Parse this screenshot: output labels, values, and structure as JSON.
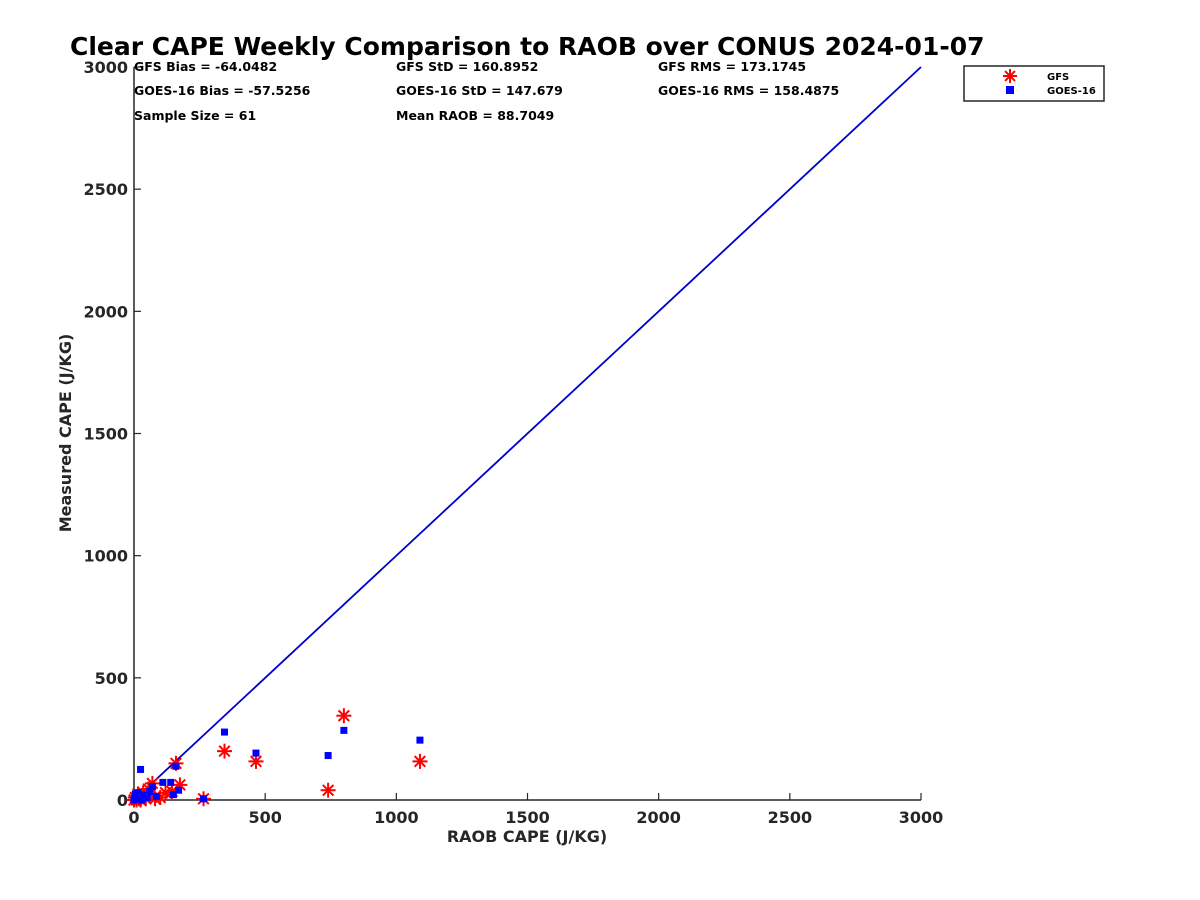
{
  "chart_data": {
    "type": "scatter",
    "title": "Clear CAPE Weekly Comparison to RAOB over CONUS 2024-01-07",
    "xlabel": "RAOB CAPE (J/KG)",
    "ylabel": "Measured CAPE (J/KG)",
    "xlim": [
      0,
      3000
    ],
    "ylim": [
      0,
      3000
    ],
    "xticks": [
      "0",
      "500",
      "1000",
      "1500",
      "2000",
      "2500",
      "3000"
    ],
    "yticks": [
      "0",
      "500",
      "1000",
      "1500",
      "2000",
      "2500",
      "3000"
    ],
    "grid": false,
    "legend_position": "top-right",
    "reference_line": {
      "name": "1:1",
      "color": "#0000cc",
      "x": [
        0,
        3000
      ],
      "y": [
        0,
        3000
      ]
    },
    "stats": [
      "GFS Bias = -64.0482",
      "GFS StD = 160.8952",
      "GFS RMS = 173.1745",
      "GOES-16 Bias = -57.5256",
      "GOES-16 StD = 147.679",
      "GOES-16 RMS = 158.4875",
      "Sample Size = 61",
      "Mean RAOB = 88.7049"
    ],
    "series": [
      {
        "name": "GFS",
        "marker": "asterisk",
        "color": "#ff0000",
        "points": [
          [
            800,
            345
          ],
          [
            345,
            200
          ],
          [
            1090,
            158
          ],
          [
            465,
            158
          ],
          [
            160,
            150
          ],
          [
            740,
            40
          ],
          [
            265,
            5
          ],
          [
            175,
            62
          ],
          [
            70,
            68
          ],
          [
            55,
            45
          ],
          [
            35,
            30
          ],
          [
            120,
            30
          ],
          [
            145,
            35
          ],
          [
            100,
            10
          ],
          [
            20,
            5
          ],
          [
            10,
            0
          ],
          [
            30,
            15
          ],
          [
            45,
            5
          ],
          [
            60,
            20
          ],
          [
            0,
            0
          ],
          [
            5,
            10
          ],
          [
            15,
            25
          ],
          [
            80,
            5
          ],
          [
            25,
            0
          ]
        ]
      },
      {
        "name": "GOES-16",
        "marker": "square",
        "color": "#0000ff",
        "points": [
          [
            345,
            278
          ],
          [
            800,
            285
          ],
          [
            1090,
            245
          ],
          [
            465,
            192
          ],
          [
            740,
            182
          ],
          [
            160,
            138
          ],
          [
            25,
            125
          ],
          [
            140,
            72
          ],
          [
            110,
            72
          ],
          [
            70,
            55
          ],
          [
            170,
            40
          ],
          [
            150,
            22
          ],
          [
            265,
            5
          ],
          [
            60,
            35
          ],
          [
            40,
            20
          ],
          [
            15,
            30
          ],
          [
            10,
            5
          ],
          [
            30,
            0
          ],
          [
            85,
            15
          ],
          [
            50,
            10
          ],
          [
            0,
            0
          ],
          [
            20,
            15
          ],
          [
            5,
            25
          ]
        ]
      }
    ]
  }
}
